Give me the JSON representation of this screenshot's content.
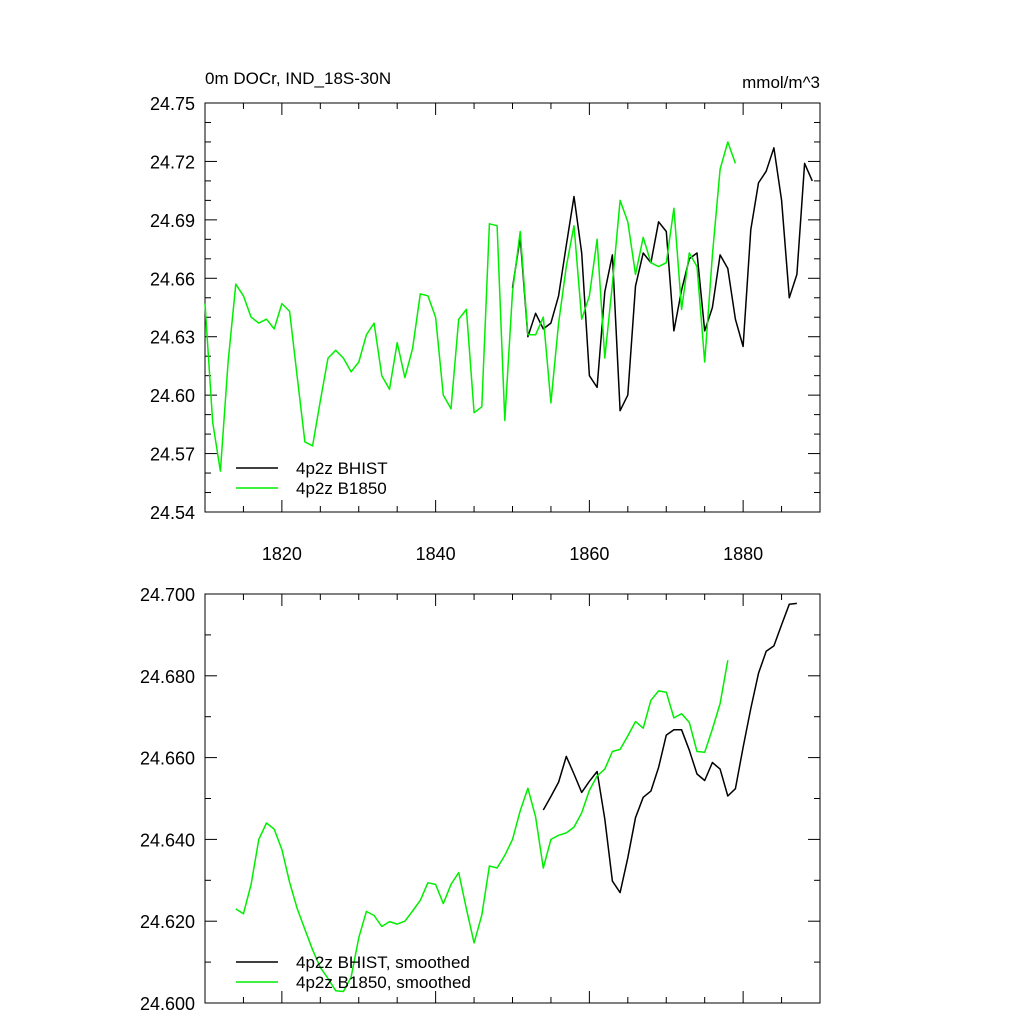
{
  "chart_data": [
    {
      "type": "line",
      "title": "0m DOCr, IND_18S-30N",
      "units": "mmol/m^3",
      "xlabel": "",
      "ylabel": "",
      "xlim": [
        1810,
        1890
      ],
      "ylim": [
        24.54,
        24.75
      ],
      "xticks": [
        1820,
        1840,
        1860,
        1880
      ],
      "xtick_labels": [
        "1820",
        "1840",
        "1860",
        "1880"
      ],
      "yticks": [
        24.54,
        24.57,
        24.6,
        24.63,
        24.66,
        24.69,
        24.72,
        24.75
      ],
      "ytick_labels": [
        "24.54",
        "24.57",
        "24.60",
        "24.63",
        "24.66",
        "24.69",
        "24.72",
        "24.75"
      ],
      "legend_position": "bottom-left",
      "series": [
        {
          "name": "4p2z BHIST",
          "color": "#000000",
          "x_start": 1850,
          "values": [
            24.655,
            24.681,
            24.63,
            24.642,
            24.634,
            24.637,
            24.651,
            24.677,
            24.702,
            24.673,
            24.61,
            24.604,
            24.653,
            24.672,
            24.592,
            24.6,
            24.656,
            24.673,
            24.668,
            24.689,
            24.684,
            24.633,
            24.654,
            24.67,
            24.673,
            24.633,
            24.645,
            24.672,
            24.665,
            24.639,
            24.625,
            24.685,
            24.709,
            24.715,
            24.727,
            24.7,
            24.65,
            24.662,
            24.719,
            24.71
          ]
        },
        {
          "name": "4p2z B1850",
          "color": "#00ee00",
          "x_start": 1810,
          "values": [
            24.647,
            24.586,
            24.561,
            24.617,
            24.657,
            24.651,
            24.64,
            24.637,
            24.639,
            24.634,
            24.647,
            24.643,
            24.609,
            24.576,
            24.574,
            24.597,
            24.619,
            24.623,
            24.619,
            24.612,
            24.617,
            24.631,
            24.637,
            24.61,
            24.603,
            24.627,
            24.609,
            24.624,
            24.652,
            24.651,
            24.64,
            24.6,
            24.593,
            24.639,
            24.644,
            24.591,
            24.594,
            24.688,
            24.687,
            24.587,
            24.653,
            24.684,
            24.631,
            24.631,
            24.64,
            24.596,
            24.637,
            24.666,
            24.687,
            24.639,
            24.651,
            24.68,
            24.619,
            24.657,
            24.7,
            24.689,
            24.662,
            24.681,
            24.668,
            24.666,
            24.668,
            24.696,
            24.644,
            24.673,
            24.666,
            24.617,
            24.672,
            24.716,
            24.73,
            24.719
          ]
        }
      ]
    },
    {
      "type": "line",
      "title": "",
      "units": "",
      "xlabel": "",
      "ylabel": "",
      "xlim": [
        1810,
        1890
      ],
      "ylim": [
        24.6,
        24.7
      ],
      "xticks": [
        1820,
        1840,
        1860,
        1880
      ],
      "xtick_labels": [],
      "yticks": [
        24.6,
        24.62,
        24.64,
        24.66,
        24.68,
        24.7
      ],
      "ytick_labels": [
        "24.600",
        "24.620",
        "24.640",
        "24.660",
        "24.680",
        "24.700"
      ],
      "legend_position": "bottom-left",
      "series": [
        {
          "name": "4p2z BHIST, smoothed",
          "color": "#000000",
          "x_start": 1854,
          "values": [
            24.6472,
            24.6505,
            24.654,
            24.6603,
            24.656,
            24.6515,
            24.6542,
            24.6566,
            24.645,
            24.6298,
            24.627,
            24.6355,
            24.6453,
            24.6503,
            24.6518,
            24.6576,
            24.6655,
            24.6668,
            24.6668,
            24.6618,
            24.656,
            24.6544,
            24.6588,
            24.6572,
            24.6506,
            24.6524,
            24.6625,
            24.672,
            24.6806,
            24.686,
            24.6873,
            24.6925,
            24.6975,
            24.6977
          ]
        },
        {
          "name": "4p2z B1850, smoothed",
          "color": "#00ee00",
          "x_start": 1814,
          "values": [
            24.623,
            24.6218,
            24.629,
            24.64,
            24.644,
            24.6425,
            24.6375,
            24.6295,
            24.623,
            24.618,
            24.613,
            24.6087,
            24.606,
            24.603,
            24.6028,
            24.6063,
            24.616,
            24.6224,
            24.6214,
            24.6187,
            24.6199,
            24.6193,
            24.62,
            24.6225,
            24.6251,
            24.6294,
            24.629,
            24.6243,
            24.629,
            24.6319,
            24.623,
            24.6147,
            24.6215,
            24.6335,
            24.633,
            24.6361,
            24.64,
            24.647,
            24.6525,
            24.6455,
            24.633,
            24.64,
            24.641,
            24.6416,
            24.643,
            24.6465,
            24.652,
            24.6555,
            24.6572,
            24.6615,
            24.662,
            24.6653,
            24.6688,
            24.6672,
            24.674,
            24.6763,
            24.676,
            24.6697,
            24.6707,
            24.6686,
            24.6615,
            24.6613,
            24.667,
            24.6732,
            24.6838
          ]
        }
      ]
    }
  ]
}
